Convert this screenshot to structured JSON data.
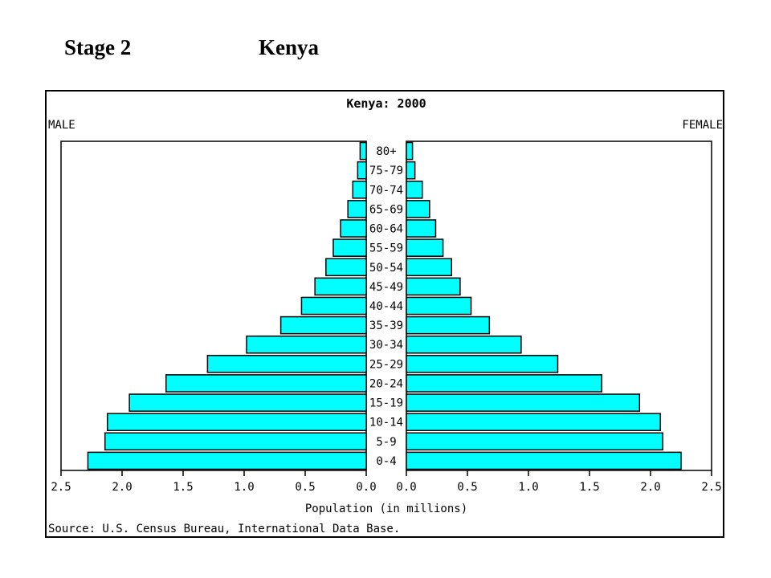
{
  "slide": {
    "stage_label": "Stage 2",
    "country_label": "Kenya"
  },
  "chart_data": {
    "type": "bar",
    "orientation": "horizontal",
    "layout": "population-pyramid",
    "title": "Kenya: 2000",
    "left_label": "MALE",
    "right_label": "FEMALE",
    "xlabel": "Population (in millions)",
    "source": "Source: U.S. Census Bureau, International Data Base.",
    "xlim": [
      0,
      2.5
    ],
    "xticks": [
      "2.5",
      "2.0",
      "1.5",
      "1.0",
      "0.5",
      "0.0"
    ],
    "colors": {
      "bar": "#00ffff",
      "edge": "#000000"
    },
    "categories": [
      "0-4",
      "5-9",
      "10-14",
      "15-19",
      "20-24",
      "25-29",
      "30-34",
      "35-39",
      "40-44",
      "45-49",
      "50-54",
      "55-59",
      "60-64",
      "65-69",
      "70-74",
      "75-79",
      "80+"
    ],
    "series": [
      {
        "name": "MALE",
        "values": [
          2.28,
          2.14,
          2.12,
          1.94,
          1.64,
          1.3,
          0.98,
          0.7,
          0.53,
          0.42,
          0.33,
          0.27,
          0.21,
          0.15,
          0.11,
          0.07,
          0.05
        ]
      },
      {
        "name": "FEMALE",
        "values": [
          2.25,
          2.1,
          2.08,
          1.91,
          1.6,
          1.24,
          0.94,
          0.68,
          0.53,
          0.44,
          0.37,
          0.3,
          0.24,
          0.19,
          0.13,
          0.07,
          0.05
        ]
      }
    ]
  }
}
